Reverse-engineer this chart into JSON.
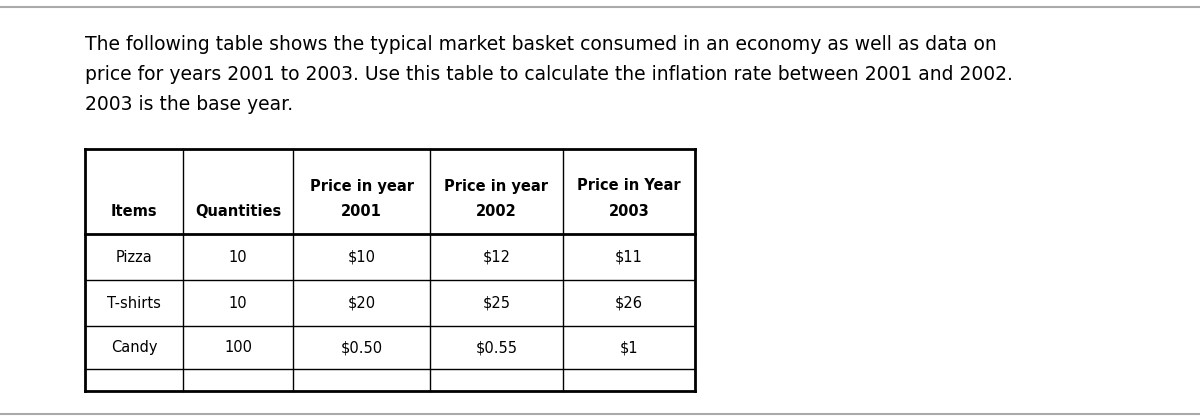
{
  "description_line1": "The following table shows the typical market basket consumed in an economy as well as data on",
  "description_line2": "price for years 2001 to 2003. Use this table to calculate the inflation rate between 2001 and 2002.",
  "description_line3": "2003 is the base year.",
  "col_headers_line1": [
    "",
    "",
    "Price in year",
    "Price in year",
    "Price in Year"
  ],
  "col_headers_line2": [
    "Items",
    "Quantities",
    "2001",
    "2002",
    "2003"
  ],
  "rows": [
    [
      "Pizza",
      "10",
      "$10",
      "$12",
      "$11"
    ],
    [
      "T-shirts",
      "10",
      "$20",
      "$25",
      "$26"
    ],
    [
      "Candy",
      "100",
      "$0.50",
      "$0.55",
      "$1"
    ],
    [
      "",
      "",
      "",
      "",
      ""
    ]
  ],
  "bg_color": "#ffffff",
  "text_color": "#000000",
  "border_color": "#000000",
  "top_border_color": "#aaaaaa",
  "bottom_border_color": "#aaaaaa",
  "header_font_size": 10.5,
  "body_font_size": 10.5,
  "desc_font_size": 13.5
}
